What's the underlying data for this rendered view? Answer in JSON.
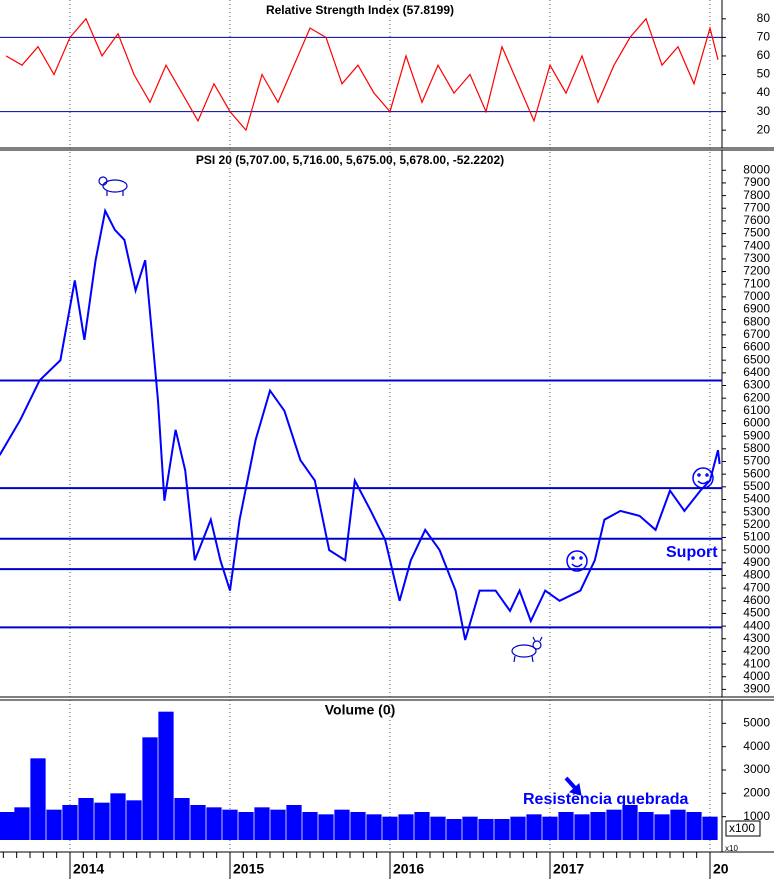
{
  "chart_data": [
    {
      "type": "line",
      "title": "Relative Strength Index (57.8199)",
      "color": "#ff0000",
      "x": [
        2013.6,
        2013.7,
        2013.8,
        2013.9,
        2014.0,
        2014.1,
        2014.2,
        2014.3,
        2014.4,
        2014.5,
        2014.6,
        2014.7,
        2014.8,
        2014.9,
        2015.0,
        2015.1,
        2015.2,
        2015.3,
        2015.4,
        2015.5,
        2015.6,
        2015.7,
        2015.8,
        2015.9,
        2016.0,
        2016.1,
        2016.2,
        2016.3,
        2016.4,
        2016.5,
        2016.6,
        2016.7,
        2016.8,
        2016.9,
        2017.0,
        2017.1,
        2017.2,
        2017.3,
        2017.4,
        2017.5,
        2017.6,
        2017.7,
        2017.8,
        2017.9,
        2018.0,
        2018.05
      ],
      "values": [
        60,
        55,
        65,
        50,
        70,
        80,
        60,
        72,
        50,
        35,
        55,
        40,
        25,
        45,
        30,
        20,
        50,
        35,
        55,
        75,
        70,
        45,
        55,
        40,
        30,
        60,
        35,
        55,
        40,
        50,
        30,
        65,
        45,
        25,
        55,
        40,
        60,
        35,
        55,
        70,
        80,
        55,
        65,
        45,
        75,
        58
      ],
      "levels": [
        70,
        30
      ],
      "level_color": "#0000a0",
      "xlim": [
        2013.5625,
        2018.075
      ],
      "ylim": [
        12,
        88
      ],
      "yticks": [
        20,
        30,
        40,
        50,
        60,
        70,
        80
      ]
    },
    {
      "type": "line",
      "title": "PSI 20 (5,707.00, 5,716.00, 5,675.00, 5,678.00, -52.2202)",
      "color": "#0000ff",
      "x": [
        2013.56,
        2013.69,
        2013.81,
        2013.94,
        2014.03,
        2014.09,
        2014.16,
        2014.22,
        2014.28,
        2014.34,
        2014.41,
        2014.47,
        2014.51,
        2014.55,
        2014.59,
        2014.66,
        2014.72,
        2014.78,
        2014.88,
        2014.94,
        2015.0,
        2015.06,
        2015.16,
        2015.25,
        2015.34,
        2015.44,
        2015.53,
        2015.62,
        2015.72,
        2015.78,
        2015.88,
        2015.97,
        2016.06,
        2016.13,
        2016.22,
        2016.31,
        2016.41,
        2016.47,
        2016.56,
        2016.66,
        2016.75,
        2016.81,
        2016.88,
        2016.97,
        2017.06,
        2017.19,
        2017.28,
        2017.34,
        2017.44,
        2017.56,
        2017.66,
        2017.75,
        2017.84,
        2017.94,
        2018.0,
        2018.05,
        2018.06
      ],
      "values": [
        5750,
        6030,
        6340,
        6500,
        7130,
        6660,
        7290,
        7680,
        7530,
        7450,
        7050,
        7290,
        6740,
        6180,
        5390,
        5950,
        5630,
        4920,
        5240,
        4920,
        4680,
        5240,
        5870,
        6260,
        6100,
        5710,
        5550,
        5000,
        4920,
        5550,
        5310,
        5080,
        4600,
        4920,
        5160,
        5000,
        4680,
        4290,
        4680,
        4680,
        4520,
        4680,
        4440,
        4680,
        4600,
        4680,
        4920,
        5240,
        5310,
        5270,
        5160,
        5470,
        5310,
        5470,
        5550,
        5790,
        5680
      ],
      "levels": [
        6340,
        5490,
        5090,
        4850,
        4390
      ],
      "level_color": "#0000cc",
      "annotations": [
        "Suport"
      ],
      "xlim": [
        2013.5625,
        2018.075
      ],
      "ylim": [
        3840,
        8160
      ],
      "yticks": [
        3900,
        4000,
        4100,
        4200,
        4300,
        4400,
        4500,
        4600,
        4700,
        4800,
        4900,
        5000,
        5100,
        5200,
        5300,
        5400,
        5500,
        5600,
        5700,
        5800,
        5900,
        6000,
        6100,
        6200,
        6300,
        6400,
        6500,
        6600,
        6700,
        6800,
        6900,
        7000,
        7100,
        7200,
        7300,
        7400,
        7500,
        7600,
        7700,
        7800,
        7900,
        8000
      ]
    },
    {
      "type": "bar",
      "title": "Volume (0)",
      "color": "#0000ff",
      "x": [
        2013.6,
        2013.7,
        2013.8,
        2013.9,
        2014.0,
        2014.1,
        2014.2,
        2014.3,
        2014.4,
        2014.5,
        2014.6,
        2014.7,
        2014.8,
        2014.9,
        2015.0,
        2015.1,
        2015.2,
        2015.3,
        2015.4,
        2015.5,
        2015.6,
        2015.7,
        2015.8,
        2015.9,
        2016.0,
        2016.1,
        2016.2,
        2016.3,
        2016.4,
        2016.5,
        2016.6,
        2016.7,
        2016.8,
        2016.9,
        2017.0,
        2017.1,
        2017.2,
        2017.3,
        2017.4,
        2017.5,
        2017.6,
        2017.7,
        2017.8,
        2017.9,
        2018.0
      ],
      "values": [
        1200,
        1400,
        3500,
        1300,
        1500,
        1800,
        1600,
        2000,
        1700,
        4400,
        5500,
        1800,
        1500,
        1400,
        1300,
        1200,
        1400,
        1300,
        1500,
        1200,
        1100,
        1300,
        1200,
        1100,
        1000,
        1100,
        1200,
        1000,
        900,
        1000,
        900,
        900,
        1000,
        1100,
        1000,
        1200,
        1100,
        1200,
        1300,
        1500,
        1200,
        1100,
        1300,
        1200,
        1000
      ],
      "annotations": [
        "Resistência quebrada"
      ],
      "units": [
        "x100",
        "x10"
      ],
      "xlim": [
        2013.5625,
        2018.075
      ],
      "ylim": [
        0,
        6000
      ],
      "yticks": [
        1000,
        2000,
        3000,
        4000,
        5000
      ],
      "xticks": [
        2014,
        2015,
        2016,
        2017,
        {
          "value": 2018,
          "label": "20"
        }
      ]
    }
  ]
}
